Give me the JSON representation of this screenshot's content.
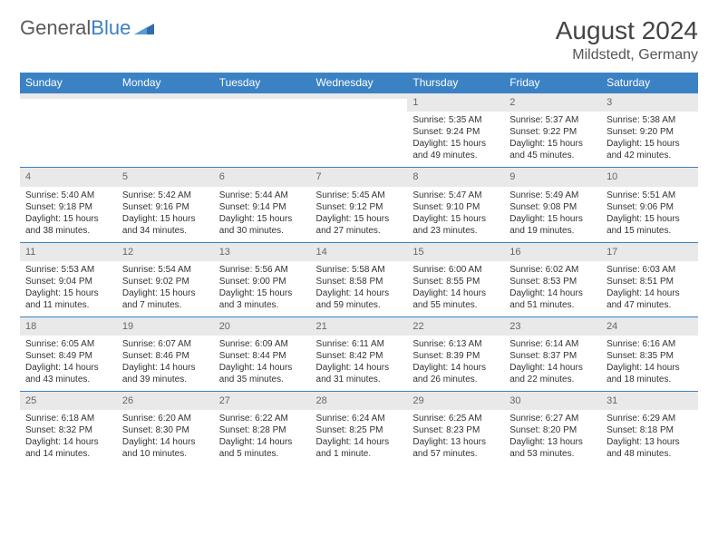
{
  "logo": {
    "text1": "General",
    "text2": "Blue"
  },
  "title": "August 2024",
  "location": "Mildstedt, Germany",
  "colors": {
    "header_bg": "#3b82c4",
    "header_text": "#ffffff",
    "daynum_bg": "#e9e9e9",
    "border": "#3b82c4",
    "logo_gray": "#5a5a5a",
    "logo_blue": "#3b7fc4"
  },
  "weekdays": [
    "Sunday",
    "Monday",
    "Tuesday",
    "Wednesday",
    "Thursday",
    "Friday",
    "Saturday"
  ],
  "weeks": [
    [
      {
        "n": "",
        "sr": "",
        "ss": "",
        "dl": ""
      },
      {
        "n": "",
        "sr": "",
        "ss": "",
        "dl": ""
      },
      {
        "n": "",
        "sr": "",
        "ss": "",
        "dl": ""
      },
      {
        "n": "",
        "sr": "",
        "ss": "",
        "dl": ""
      },
      {
        "n": "1",
        "sr": "Sunrise: 5:35 AM",
        "ss": "Sunset: 9:24 PM",
        "dl": "Daylight: 15 hours and 49 minutes."
      },
      {
        "n": "2",
        "sr": "Sunrise: 5:37 AM",
        "ss": "Sunset: 9:22 PM",
        "dl": "Daylight: 15 hours and 45 minutes."
      },
      {
        "n": "3",
        "sr": "Sunrise: 5:38 AM",
        "ss": "Sunset: 9:20 PM",
        "dl": "Daylight: 15 hours and 42 minutes."
      }
    ],
    [
      {
        "n": "4",
        "sr": "Sunrise: 5:40 AM",
        "ss": "Sunset: 9:18 PM",
        "dl": "Daylight: 15 hours and 38 minutes."
      },
      {
        "n": "5",
        "sr": "Sunrise: 5:42 AM",
        "ss": "Sunset: 9:16 PM",
        "dl": "Daylight: 15 hours and 34 minutes."
      },
      {
        "n": "6",
        "sr": "Sunrise: 5:44 AM",
        "ss": "Sunset: 9:14 PM",
        "dl": "Daylight: 15 hours and 30 minutes."
      },
      {
        "n": "7",
        "sr": "Sunrise: 5:45 AM",
        "ss": "Sunset: 9:12 PM",
        "dl": "Daylight: 15 hours and 27 minutes."
      },
      {
        "n": "8",
        "sr": "Sunrise: 5:47 AM",
        "ss": "Sunset: 9:10 PM",
        "dl": "Daylight: 15 hours and 23 minutes."
      },
      {
        "n": "9",
        "sr": "Sunrise: 5:49 AM",
        "ss": "Sunset: 9:08 PM",
        "dl": "Daylight: 15 hours and 19 minutes."
      },
      {
        "n": "10",
        "sr": "Sunrise: 5:51 AM",
        "ss": "Sunset: 9:06 PM",
        "dl": "Daylight: 15 hours and 15 minutes."
      }
    ],
    [
      {
        "n": "11",
        "sr": "Sunrise: 5:53 AM",
        "ss": "Sunset: 9:04 PM",
        "dl": "Daylight: 15 hours and 11 minutes."
      },
      {
        "n": "12",
        "sr": "Sunrise: 5:54 AM",
        "ss": "Sunset: 9:02 PM",
        "dl": "Daylight: 15 hours and 7 minutes."
      },
      {
        "n": "13",
        "sr": "Sunrise: 5:56 AM",
        "ss": "Sunset: 9:00 PM",
        "dl": "Daylight: 15 hours and 3 minutes."
      },
      {
        "n": "14",
        "sr": "Sunrise: 5:58 AM",
        "ss": "Sunset: 8:58 PM",
        "dl": "Daylight: 14 hours and 59 minutes."
      },
      {
        "n": "15",
        "sr": "Sunrise: 6:00 AM",
        "ss": "Sunset: 8:55 PM",
        "dl": "Daylight: 14 hours and 55 minutes."
      },
      {
        "n": "16",
        "sr": "Sunrise: 6:02 AM",
        "ss": "Sunset: 8:53 PM",
        "dl": "Daylight: 14 hours and 51 minutes."
      },
      {
        "n": "17",
        "sr": "Sunrise: 6:03 AM",
        "ss": "Sunset: 8:51 PM",
        "dl": "Daylight: 14 hours and 47 minutes."
      }
    ],
    [
      {
        "n": "18",
        "sr": "Sunrise: 6:05 AM",
        "ss": "Sunset: 8:49 PM",
        "dl": "Daylight: 14 hours and 43 minutes."
      },
      {
        "n": "19",
        "sr": "Sunrise: 6:07 AM",
        "ss": "Sunset: 8:46 PM",
        "dl": "Daylight: 14 hours and 39 minutes."
      },
      {
        "n": "20",
        "sr": "Sunrise: 6:09 AM",
        "ss": "Sunset: 8:44 PM",
        "dl": "Daylight: 14 hours and 35 minutes."
      },
      {
        "n": "21",
        "sr": "Sunrise: 6:11 AM",
        "ss": "Sunset: 8:42 PM",
        "dl": "Daylight: 14 hours and 31 minutes."
      },
      {
        "n": "22",
        "sr": "Sunrise: 6:13 AM",
        "ss": "Sunset: 8:39 PM",
        "dl": "Daylight: 14 hours and 26 minutes."
      },
      {
        "n": "23",
        "sr": "Sunrise: 6:14 AM",
        "ss": "Sunset: 8:37 PM",
        "dl": "Daylight: 14 hours and 22 minutes."
      },
      {
        "n": "24",
        "sr": "Sunrise: 6:16 AM",
        "ss": "Sunset: 8:35 PM",
        "dl": "Daylight: 14 hours and 18 minutes."
      }
    ],
    [
      {
        "n": "25",
        "sr": "Sunrise: 6:18 AM",
        "ss": "Sunset: 8:32 PM",
        "dl": "Daylight: 14 hours and 14 minutes."
      },
      {
        "n": "26",
        "sr": "Sunrise: 6:20 AM",
        "ss": "Sunset: 8:30 PM",
        "dl": "Daylight: 14 hours and 10 minutes."
      },
      {
        "n": "27",
        "sr": "Sunrise: 6:22 AM",
        "ss": "Sunset: 8:28 PM",
        "dl": "Daylight: 14 hours and 5 minutes."
      },
      {
        "n": "28",
        "sr": "Sunrise: 6:24 AM",
        "ss": "Sunset: 8:25 PM",
        "dl": "Daylight: 14 hours and 1 minute."
      },
      {
        "n": "29",
        "sr": "Sunrise: 6:25 AM",
        "ss": "Sunset: 8:23 PM",
        "dl": "Daylight: 13 hours and 57 minutes."
      },
      {
        "n": "30",
        "sr": "Sunrise: 6:27 AM",
        "ss": "Sunset: 8:20 PM",
        "dl": "Daylight: 13 hours and 53 minutes."
      },
      {
        "n": "31",
        "sr": "Sunrise: 6:29 AM",
        "ss": "Sunset: 8:18 PM",
        "dl": "Daylight: 13 hours and 48 minutes."
      }
    ]
  ]
}
